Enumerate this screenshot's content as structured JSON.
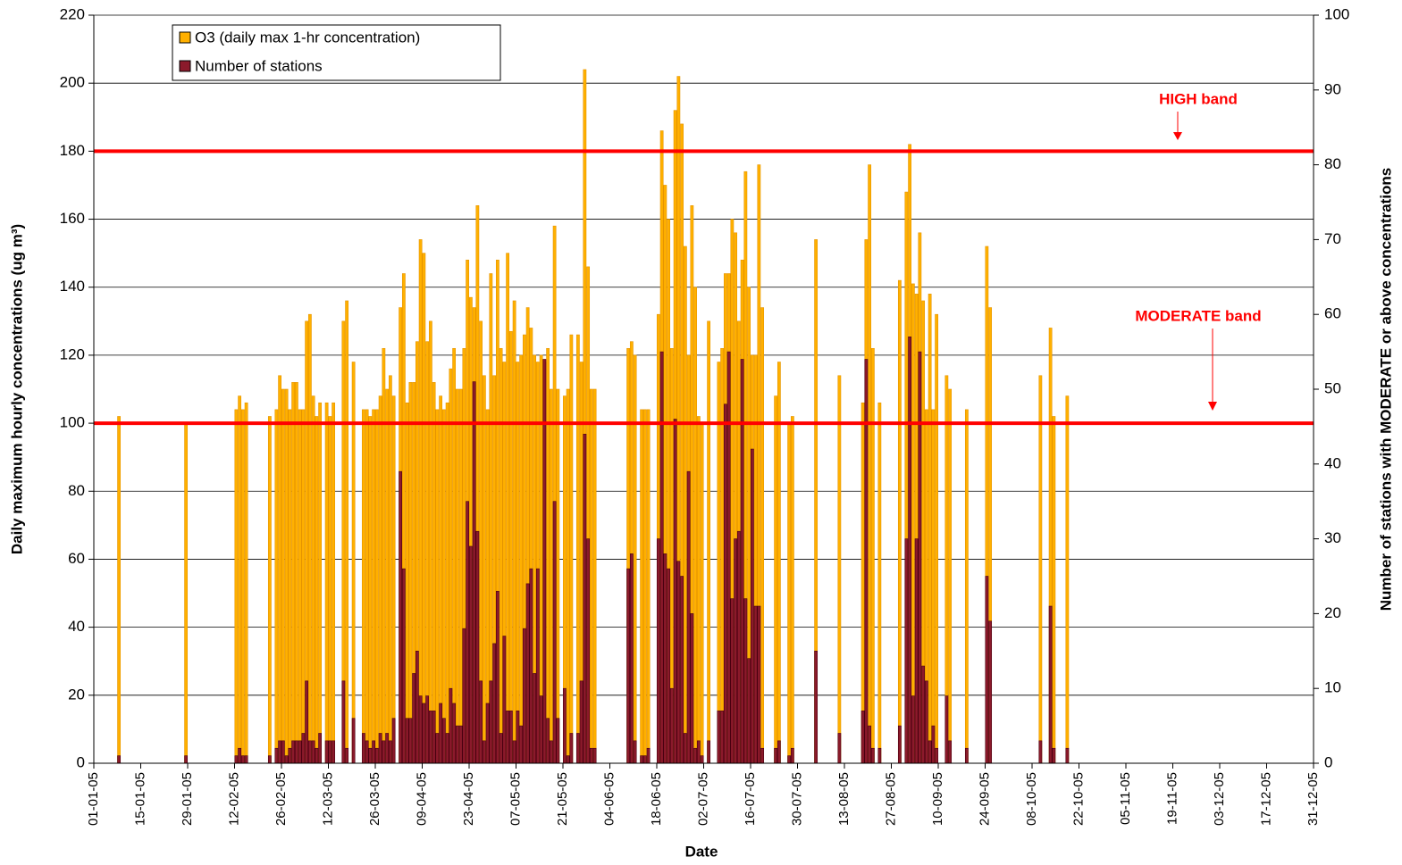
{
  "chart_data": {
    "type": "bar",
    "xlabel": "Date",
    "ylabel": "Daily maximum hourly concentrations (ug m³)",
    "y2label": "Number of stations with MODERATE or above concentrations",
    "xlim": [
      "2005-01-01",
      "2005-12-31"
    ],
    "xticks": [
      {
        "value": "2005-01-01",
        "label": "01-01-05"
      },
      {
        "value": "2005-01-15",
        "label": "15-01-05"
      },
      {
        "value": "2005-01-29",
        "label": "29-01-05"
      },
      {
        "value": "2005-02-12",
        "label": "12-02-05"
      },
      {
        "value": "2005-02-26",
        "label": "26-02-05"
      },
      {
        "value": "2005-03-12",
        "label": "12-03-05"
      },
      {
        "value": "2005-03-26",
        "label": "26-03-05"
      },
      {
        "value": "2005-04-09",
        "label": "09-04-05"
      },
      {
        "value": "2005-04-23",
        "label": "23-04-05"
      },
      {
        "value": "2005-05-07",
        "label": "07-05-05"
      },
      {
        "value": "2005-05-21",
        "label": "21-05-05"
      },
      {
        "value": "2005-06-04",
        "label": "04-06-05"
      },
      {
        "value": "2005-06-18",
        "label": "18-06-05"
      },
      {
        "value": "2005-07-02",
        "label": "02-07-05"
      },
      {
        "value": "2005-07-16",
        "label": "16-07-05"
      },
      {
        "value": "2005-07-30",
        "label": "30-07-05"
      },
      {
        "value": "2005-08-13",
        "label": "13-08-05"
      },
      {
        "value": "2005-08-27",
        "label": "27-08-05"
      },
      {
        "value": "2005-09-10",
        "label": "10-09-05"
      },
      {
        "value": "2005-09-24",
        "label": "24-09-05"
      },
      {
        "value": "2005-10-08",
        "label": "08-10-05"
      },
      {
        "value": "2005-10-22",
        "label": "22-10-05"
      },
      {
        "value": "2005-11-05",
        "label": "05-11-05"
      },
      {
        "value": "2005-11-19",
        "label": "19-11-05"
      },
      {
        "value": "2005-12-03",
        "label": "03-12-05"
      },
      {
        "value": "2005-12-17",
        "label": "17-12-05"
      },
      {
        "value": "2005-12-31",
        "label": "31-12-05"
      }
    ],
    "ylim": [
      0,
      220
    ],
    "yticks": [
      0,
      20,
      40,
      60,
      80,
      100,
      120,
      140,
      160,
      180,
      200,
      220
    ],
    "y2lim": [
      0,
      100
    ],
    "y2ticks": [
      0,
      10,
      20,
      30,
      40,
      50,
      60,
      70,
      80,
      90,
      100
    ],
    "grid": true,
    "legend": "upper left",
    "thresholds": [
      {
        "label": "HIGH band",
        "value": 180,
        "color": "#ff0000"
      },
      {
        "label": "MODERATE band",
        "value": 100,
        "color": "#ff0000"
      }
    ],
    "x": [
      "2005-01-08",
      "2005-01-28",
      "2005-02-12",
      "2005-02-13",
      "2005-02-14",
      "2005-02-15",
      "2005-02-22",
      "2005-02-24",
      "2005-02-25",
      "2005-02-26",
      "2005-02-27",
      "2005-02-28",
      "2005-03-01",
      "2005-03-02",
      "2005-03-03",
      "2005-03-04",
      "2005-03-05",
      "2005-03-06",
      "2005-03-07",
      "2005-03-08",
      "2005-03-09",
      "2005-03-11",
      "2005-03-12",
      "2005-03-13",
      "2005-03-16",
      "2005-03-17",
      "2005-03-19",
      "2005-03-22",
      "2005-03-23",
      "2005-03-24",
      "2005-03-25",
      "2005-03-26",
      "2005-03-27",
      "2005-03-28",
      "2005-03-29",
      "2005-03-30",
      "2005-03-31",
      "2005-04-02",
      "2005-04-03",
      "2005-04-04",
      "2005-04-05",
      "2005-04-06",
      "2005-04-07",
      "2005-04-08",
      "2005-04-09",
      "2005-04-10",
      "2005-04-11",
      "2005-04-12",
      "2005-04-13",
      "2005-04-14",
      "2005-04-15",
      "2005-04-16",
      "2005-04-17",
      "2005-04-18",
      "2005-04-19",
      "2005-04-20",
      "2005-04-21",
      "2005-04-22",
      "2005-04-23",
      "2005-04-24",
      "2005-04-25",
      "2005-04-26",
      "2005-04-27",
      "2005-04-28",
      "2005-04-29",
      "2005-04-30",
      "2005-05-01",
      "2005-05-02",
      "2005-05-03",
      "2005-05-04",
      "2005-05-05",
      "2005-05-06",
      "2005-05-07",
      "2005-05-08",
      "2005-05-09",
      "2005-05-10",
      "2005-05-11",
      "2005-05-12",
      "2005-05-13",
      "2005-05-14",
      "2005-05-15",
      "2005-05-16",
      "2005-05-17",
      "2005-05-18",
      "2005-05-19",
      "2005-05-21",
      "2005-05-22",
      "2005-05-23",
      "2005-05-25",
      "2005-05-26",
      "2005-05-27",
      "2005-05-28",
      "2005-05-29",
      "2005-05-30",
      "2005-06-09",
      "2005-06-10",
      "2005-06-11",
      "2005-06-13",
      "2005-06-14",
      "2005-06-15",
      "2005-06-18",
      "2005-06-19",
      "2005-06-20",
      "2005-06-21",
      "2005-06-22",
      "2005-06-23",
      "2005-06-24",
      "2005-06-25",
      "2005-06-26",
      "2005-06-27",
      "2005-06-28",
      "2005-06-29",
      "2005-06-30",
      "2005-07-01",
      "2005-07-03",
      "2005-07-06",
      "2005-07-07",
      "2005-07-08",
      "2005-07-09",
      "2005-07-10",
      "2005-07-11",
      "2005-07-12",
      "2005-07-13",
      "2005-07-14",
      "2005-07-15",
      "2005-07-16",
      "2005-07-17",
      "2005-07-18",
      "2005-07-19",
      "2005-07-23",
      "2005-07-24",
      "2005-07-27",
      "2005-07-28",
      "2005-08-04",
      "2005-08-11",
      "2005-08-18",
      "2005-08-19",
      "2005-08-20",
      "2005-08-21",
      "2005-08-23",
      "2005-08-29",
      "2005-08-31",
      "2005-09-01",
      "2005-09-02",
      "2005-09-03",
      "2005-09-04",
      "2005-09-05",
      "2005-09-06",
      "2005-09-07",
      "2005-09-08",
      "2005-09-09",
      "2005-09-12",
      "2005-09-13",
      "2005-09-18",
      "2005-09-24",
      "2005-09-25",
      "2005-10-10",
      "2005-10-13",
      "2005-10-14",
      "2005-10-18"
    ],
    "series": [
      {
        "name": "O3 (daily max 1-hr concentration)",
        "color": "#ffb000",
        "values": [
          102,
          100,
          104,
          108,
          104,
          106,
          102,
          104,
          114,
          110,
          110,
          104,
          112,
          112,
          104,
          104,
          130,
          132,
          108,
          102,
          106,
          106,
          102,
          106,
          130,
          136,
          118,
          104,
          104,
          102,
          104,
          104,
          108,
          122,
          110,
          114,
          108,
          134,
          144,
          106,
          112,
          112,
          124,
          154,
          150,
          124,
          130,
          112,
          104,
          108,
          104,
          106,
          116,
          122,
          110,
          110,
          122,
          148,
          137,
          134,
          164,
          130,
          114,
          104,
          144,
          114,
          148,
          122,
          118,
          150,
          127,
          136,
          118,
          120,
          126,
          134,
          128,
          120,
          118,
          120,
          118,
          122,
          110,
          158,
          110,
          108,
          110,
          126,
          126,
          118,
          204,
          146,
          110,
          110,
          122,
          124,
          120,
          104,
          104,
          104,
          132,
          186,
          170,
          160,
          122,
          192,
          202,
          188,
          152,
          120,
          164,
          140,
          102,
          100,
          130,
          118,
          122,
          144,
          144,
          160,
          156,
          130,
          148,
          174,
          140,
          120,
          120,
          176,
          134,
          108,
          118,
          100,
          102,
          154,
          114,
          106,
          154,
          176,
          122,
          106,
          142,
          168,
          182,
          141,
          138,
          156,
          136,
          104,
          138,
          104,
          132,
          114,
          110,
          104,
          152,
          134,
          114,
          128,
          102,
          108
        ]
      },
      {
        "name": "Number of stations",
        "color": "#8b1a2b",
        "axis": "y2",
        "values": [
          1,
          1,
          1,
          2,
          1,
          1,
          1,
          2,
          3,
          3,
          1,
          2,
          3,
          3,
          3,
          4,
          11,
          3,
          3,
          2,
          4,
          3,
          3,
          3,
          11,
          2,
          6,
          4,
          3,
          2,
          3,
          2,
          4,
          3,
          4,
          3,
          6,
          39,
          26,
          6,
          6,
          12,
          15,
          9,
          8,
          9,
          7,
          7,
          4,
          8,
          6,
          4,
          10,
          8,
          5,
          5,
          18,
          35,
          29,
          51,
          31,
          11,
          3,
          8,
          11,
          16,
          23,
          4,
          17,
          7,
          7,
          3,
          7,
          5,
          18,
          24,
          26,
          12,
          26,
          9,
          54,
          6,
          3,
          35,
          6,
          10,
          1,
          4,
          4,
          11,
          44,
          30,
          2,
          2,
          26,
          28,
          3,
          1,
          1,
          2,
          30,
          55,
          28,
          26,
          10,
          46,
          27,
          25,
          4,
          39,
          20,
          2,
          3,
          1,
          3,
          7,
          7,
          48,
          55,
          22,
          30,
          31,
          54,
          22,
          14,
          42,
          21,
          21,
          2,
          2,
          3,
          1,
          2,
          15,
          4,
          7,
          54,
          5,
          2,
          2,
          5,
          30,
          57,
          9,
          30,
          55,
          13,
          11,
          3,
          5,
          2,
          9,
          3,
          2,
          25,
          19,
          3,
          21,
          2,
          2
        ]
      }
    ]
  }
}
